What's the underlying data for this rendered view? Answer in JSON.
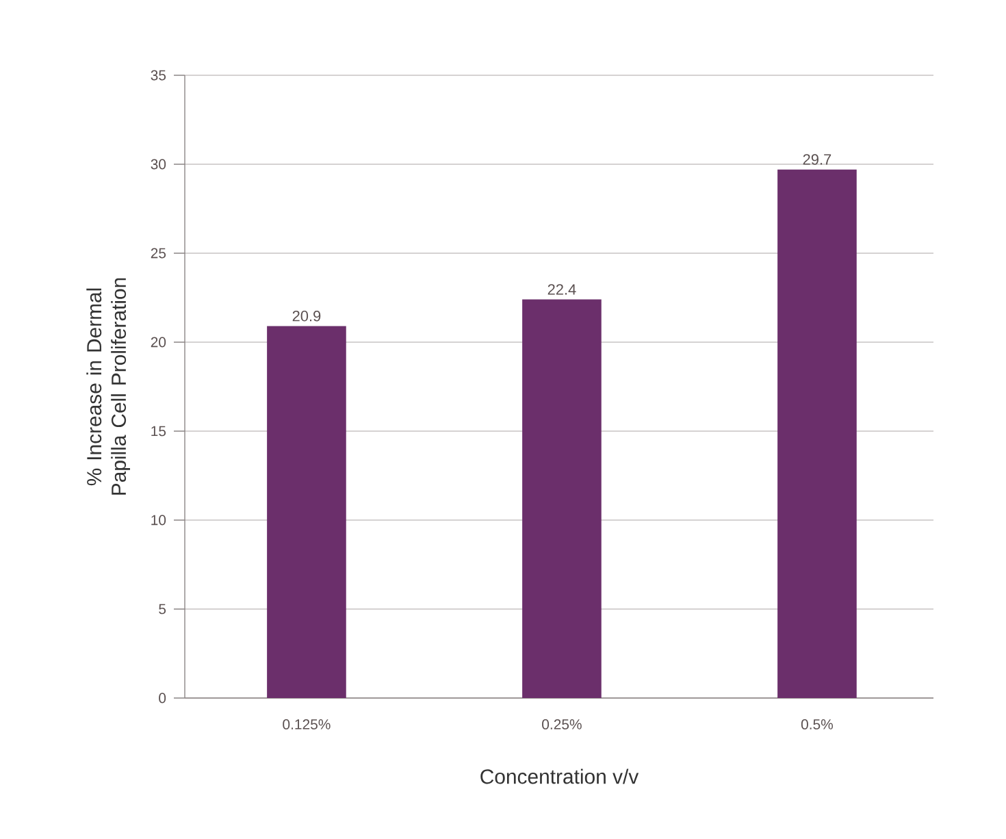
{
  "chart_data": {
    "type": "bar",
    "xlabel": "Concentration  v/v",
    "ylabel": "% Increase in Dermal Papilla Cell Proliferation",
    "categories": [
      "0.125%",
      "0.25%",
      "0.5%"
    ],
    "values": [
      20.9,
      22.4,
      29.7
    ],
    "color": "#6b2f6b",
    "ylim": [
      0,
      35
    ],
    "yticks": [
      0,
      5,
      10,
      15,
      20,
      25,
      30,
      35
    ],
    "grid": "y",
    "data_labels": true
  }
}
